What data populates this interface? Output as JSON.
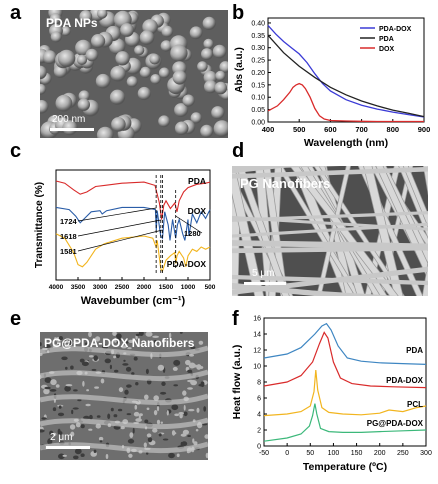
{
  "panels": {
    "a": {
      "letter": "a",
      "label": "PDA NPs",
      "scale": "200 nm"
    },
    "b": {
      "letter": "b"
    },
    "c": {
      "letter": "c"
    },
    "d": {
      "letter": "d",
      "label": "PG Nanofibers",
      "scale": "5 μm"
    },
    "e": {
      "letter": "e",
      "label": "PG@PDA-DOX Nanofibers",
      "scale": "2 μm"
    },
    "f": {
      "letter": "f"
    }
  },
  "chart_data": [
    {
      "id": "b",
      "type": "line",
      "xlabel": "Wavelength (nm)",
      "ylabel": "Abs (a.u.)",
      "xlim": [
        400,
        900
      ],
      "ylim": [
        0,
        0.42
      ],
      "xticks": [
        "400",
        "500",
        "600",
        "700",
        "800",
        "900"
      ],
      "yticks": [
        "0.00",
        "0.05",
        "0.10",
        "0.15",
        "0.20",
        "0.25",
        "0.30",
        "0.35",
        "0.40"
      ],
      "legend_position": "top-right",
      "series": [
        {
          "name": "PDA-DOX",
          "color": "#3b3bd6",
          "x": [
            400,
            425,
            450,
            475,
            500,
            525,
            550,
            575,
            600,
            650,
            700,
            750,
            800,
            850,
            900
          ],
          "values": [
            0.39,
            0.355,
            0.325,
            0.3,
            0.275,
            0.24,
            0.195,
            0.155,
            0.125,
            0.09,
            0.068,
            0.052,
            0.04,
            0.03,
            0.02
          ]
        },
        {
          "name": "PDA",
          "color": "#222222",
          "x": [
            400,
            450,
            500,
            550,
            600,
            650,
            700,
            750,
            800,
            850,
            900
          ],
          "values": [
            0.35,
            0.28,
            0.225,
            0.18,
            0.14,
            0.11,
            0.085,
            0.065,
            0.048,
            0.035,
            0.022
          ]
        },
        {
          "name": "DOX",
          "color": "#d92b2b",
          "x": [
            400,
            430,
            450,
            470,
            480,
            490,
            500,
            510,
            520,
            535,
            550,
            565,
            580,
            600,
            650,
            700,
            750,
            800,
            850,
            900
          ],
          "values": [
            0.045,
            0.065,
            0.09,
            0.12,
            0.14,
            0.15,
            0.155,
            0.15,
            0.135,
            0.1,
            0.055,
            0.025,
            0.012,
            0.006,
            0.004,
            0.003,
            0.002,
            0.002,
            0.002,
            0.002
          ]
        }
      ]
    },
    {
      "id": "c",
      "type": "line",
      "xlabel": "Wavebumber (cm⁻¹)",
      "ylabel": "Transmittance (%)",
      "xlim": [
        4000,
        500
      ],
      "xticks": [
        "4000",
        "3500",
        "3000",
        "2500",
        "2000",
        "1500",
        "1000",
        "500"
      ],
      "annotations": [
        "1724",
        "1618",
        "1581",
        "1280"
      ],
      "series": [
        {
          "name": "PDA",
          "color": "#d92b2b",
          "x": [
            4000,
            3800,
            3600,
            3450,
            3300,
            3100,
            2900,
            2500,
            2000,
            1750,
            1650,
            1600,
            1550,
            1500,
            1400,
            1300,
            1250,
            1200,
            1100,
            1000,
            800,
            600,
            500
          ],
          "values": [
            0.9,
            0.88,
            0.82,
            0.78,
            0.8,
            0.85,
            0.86,
            0.88,
            0.89,
            0.86,
            0.7,
            0.55,
            0.68,
            0.72,
            0.65,
            0.7,
            0.62,
            0.72,
            0.8,
            0.84,
            0.87,
            0.88,
            0.89
          ]
        },
        {
          "name": "DOX",
          "color": "#2a5da8",
          "x": [
            4000,
            3700,
            3550,
            3450,
            3350,
            3200,
            3000,
            2950,
            2850,
            2500,
            2000,
            1740,
            1720,
            1700,
            1620,
            1580,
            1530,
            1450,
            1410,
            1350,
            1280,
            1240,
            1200,
            1120,
            1070,
            1000,
            980,
            900,
            800,
            700,
            600,
            500
          ],
          "values": [
            0.66,
            0.64,
            0.58,
            0.52,
            0.56,
            0.62,
            0.63,
            0.6,
            0.63,
            0.66,
            0.66,
            0.64,
            0.45,
            0.63,
            0.4,
            0.38,
            0.62,
            0.5,
            0.36,
            0.55,
            0.38,
            0.5,
            0.55,
            0.42,
            0.36,
            0.55,
            0.4,
            0.6,
            0.52,
            0.62,
            0.56,
            0.64
          ]
        },
        {
          "name": "PDA-DOX",
          "color": "#f2b51f",
          "x": [
            4000,
            3800,
            3600,
            3500,
            3400,
            3300,
            3100,
            2900,
            2500,
            2000,
            1800,
            1724,
            1700,
            1618,
            1581,
            1500,
            1400,
            1300,
            1280,
            1250,
            1200,
            1100,
            1050,
            1000,
            900,
            800,
            700,
            600,
            500
          ],
          "values": [
            0.42,
            0.38,
            0.25,
            0.14,
            0.12,
            0.16,
            0.28,
            0.33,
            0.38,
            0.4,
            0.38,
            0.3,
            0.36,
            0.1,
            0.08,
            0.18,
            0.22,
            0.25,
            0.15,
            0.22,
            0.26,
            0.2,
            0.12,
            0.22,
            0.28,
            0.26,
            0.3,
            0.28,
            0.3
          ]
        }
      ]
    },
    {
      "id": "f",
      "type": "line",
      "xlabel": "Temperature (ºC)",
      "ylabel": "Heat flow (a.u.)",
      "xlim": [
        -50,
        300
      ],
      "ylim": [
        0,
        16
      ],
      "xticks": [
        "-50",
        "0",
        "50",
        "100",
        "150",
        "200",
        "250",
        "300"
      ],
      "yticks": [
        "0",
        "2",
        "4",
        "6",
        "8",
        "10",
        "12",
        "14",
        "16"
      ],
      "series": [
        {
          "name": "PDA",
          "color": "#3e86c2",
          "x": [
            -50,
            0,
            30,
            60,
            75,
            85,
            95,
            110,
            130,
            160,
            200,
            250,
            300
          ],
          "values": [
            11.0,
            11.5,
            12.3,
            14.0,
            15.0,
            15.3,
            14.5,
            12.5,
            11.0,
            10.6,
            10.4,
            10.3,
            10.2
          ]
        },
        {
          "name": "PDA-DOX",
          "color": "#d92b2b",
          "x": [
            -50,
            0,
            30,
            55,
            70,
            80,
            88,
            100,
            115,
            140,
            180,
            230,
            300
          ],
          "values": [
            7.5,
            8.0,
            8.8,
            10.5,
            12.8,
            14.2,
            13.5,
            10.5,
            8.5,
            7.8,
            7.5,
            7.4,
            7.3
          ]
        },
        {
          "name": "PCL",
          "color": "#f2b51f",
          "x": [
            -50,
            0,
            30,
            50,
            58,
            62,
            66,
            75,
            90,
            120,
            160,
            200,
            220,
            250,
            280,
            300
          ],
          "values": [
            3.8,
            4.0,
            4.3,
            5.0,
            6.8,
            9.5,
            7.0,
            4.8,
            4.2,
            4.0,
            3.9,
            4.1,
            4.5,
            4.3,
            4.8,
            5.0
          ]
        },
        {
          "name": "PG@PDA-DOX",
          "color": "#3cb87a",
          "x": [
            -50,
            0,
            30,
            48,
            55,
            60,
            64,
            72,
            90,
            120,
            160,
            200,
            250,
            300
          ],
          "values": [
            0.6,
            1.0,
            1.5,
            2.5,
            3.8,
            5.3,
            4.0,
            2.2,
            1.8,
            1.7,
            1.7,
            1.8,
            1.9,
            2.0
          ]
        }
      ]
    }
  ]
}
